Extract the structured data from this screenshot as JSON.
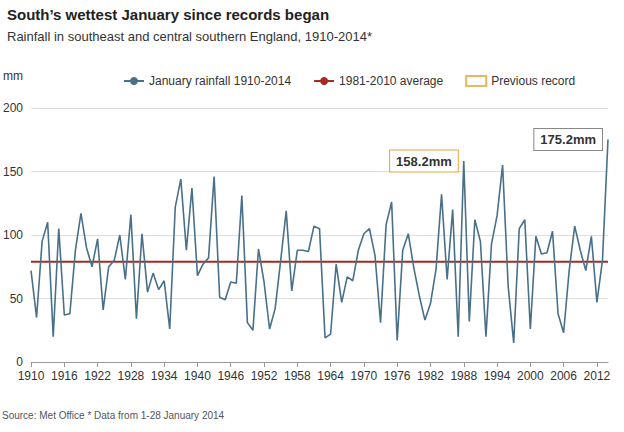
{
  "chart_data": {
    "type": "line",
    "title": "South’s wettest January since records began",
    "subtitle": "Rainfall in southeast and central southern England, 1910-2014*",
    "y_label": "mm",
    "source": "Source: Met Office * Data from 1-28 January 2014",
    "x": [
      1910,
      1911,
      1912,
      1913,
      1914,
      1915,
      1916,
      1917,
      1918,
      1919,
      1920,
      1921,
      1922,
      1923,
      1924,
      1925,
      1926,
      1927,
      1928,
      1929,
      1930,
      1931,
      1932,
      1933,
      1934,
      1935,
      1936,
      1937,
      1938,
      1939,
      1940,
      1941,
      1942,
      1943,
      1944,
      1945,
      1946,
      1947,
      1948,
      1949,
      1950,
      1951,
      1952,
      1953,
      1954,
      1955,
      1956,
      1957,
      1958,
      1959,
      1960,
      1961,
      1962,
      1963,
      1964,
      1965,
      1966,
      1967,
      1968,
      1969,
      1970,
      1971,
      1972,
      1973,
      1974,
      1975,
      1976,
      1977,
      1978,
      1979,
      1980,
      1981,
      1982,
      1983,
      1984,
      1985,
      1986,
      1987,
      1988,
      1989,
      1990,
      1991,
      1992,
      1993,
      1994,
      1995,
      1996,
      1997,
      1998,
      1999,
      2000,
      2001,
      2002,
      2003,
      2004,
      2005,
      2006,
      2007,
      2008,
      2009,
      2010,
      2011,
      2012,
      2013,
      2014
    ],
    "series": [
      {
        "name": "January rainfall 1910-2014",
        "color": "#48708a",
        "values": [
          72,
          35,
          95,
          110,
          20,
          105,
          37,
          38,
          88,
          117,
          90,
          75,
          97,
          41,
          75,
          80,
          100,
          65,
          116,
          34,
          101,
          55,
          70,
          57,
          64,
          26,
          122,
          144,
          88,
          137,
          68,
          77,
          82,
          146,
          51,
          49,
          63,
          62,
          131,
          31,
          25,
          89,
          63,
          26,
          42,
          80,
          119,
          56,
          88,
          88,
          87,
          107,
          105,
          19,
          22,
          77,
          47,
          67,
          64,
          88,
          101,
          105,
          84,
          31,
          108,
          126,
          17,
          88,
          101,
          74,
          52,
          33,
          46,
          73,
          132,
          65,
          120,
          20,
          158.2,
          32,
          112,
          95,
          20,
          93,
          115,
          155,
          60,
          15,
          105,
          112,
          26,
          99,
          85,
          86,
          103,
          38,
          23,
          72,
          107,
          88,
          72,
          99,
          47,
          80,
          175.2
        ]
      }
    ],
    "average": {
      "name": "1981-2010 average",
      "value": 79,
      "color": "#a52a22"
    },
    "annotations": [
      {
        "text": "158.2mm",
        "x": 1988,
        "y": 158.2,
        "color": "#e8a33b",
        "name": "Previous record"
      },
      {
        "text": "175.2mm",
        "x": 2014,
        "y": 175.2,
        "color": "#888888"
      }
    ],
    "xlim": [
      1910,
      2014
    ],
    "xticks": [
      1910,
      1916,
      1922,
      1928,
      1934,
      1940,
      1946,
      1952,
      1958,
      1964,
      1970,
      1976,
      1982,
      1988,
      1994,
      2000,
      2006,
      2012
    ],
    "ylim": [
      0,
      200
    ],
    "yticks": [
      0,
      50,
      100,
      150,
      200
    ],
    "grid": true,
    "legend": "top"
  }
}
